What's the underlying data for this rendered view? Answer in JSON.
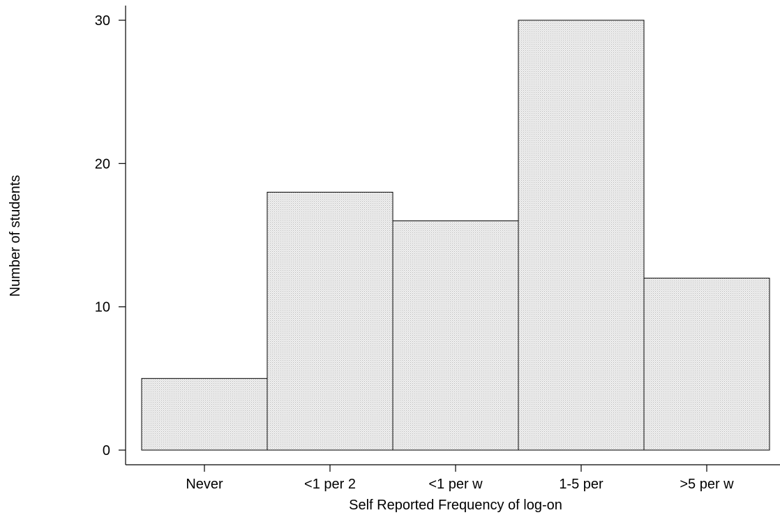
{
  "chart_data": {
    "type": "bar",
    "categories": [
      "Never",
      "<1 per 2",
      "<1 per w",
      "1-5 per",
      ">5 per w"
    ],
    "values": [
      5,
      18,
      16,
      30,
      12
    ],
    "title": "",
    "xlabel": "Self Reported Frequency of log-on",
    "ylabel": "Number of students",
    "ylim": [
      0,
      30
    ],
    "yticks": [
      0,
      10,
      20,
      30
    ],
    "grid": false,
    "legend": "none",
    "colors": {
      "bar_fill": "#e3e3e3",
      "bar_stroke": "#000000",
      "axis": "#000000"
    }
  }
}
